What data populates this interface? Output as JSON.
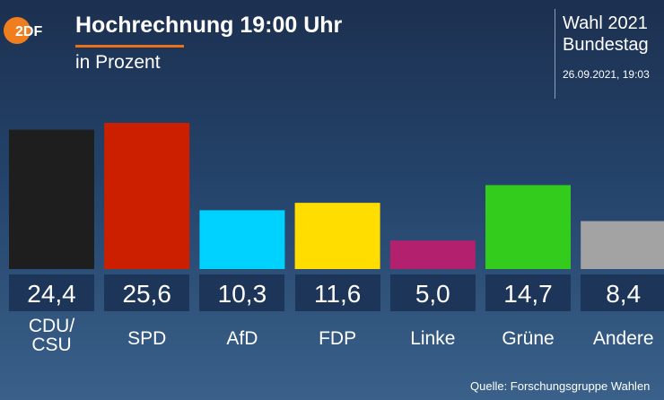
{
  "header": {
    "title": "Hochrechnung 19:00 Uhr",
    "subtitle": "in Prozent",
    "logo": "ZDF",
    "election": "Wahl 2021",
    "election_type": "Bundestag",
    "datetime": "26.09.2021, 19:03"
  },
  "footer": {
    "source": "Quelle: Forschungsgruppe Wahlen"
  },
  "chart_data": {
    "type": "bar",
    "title": "Hochrechnung 19:00 Uhr",
    "subtitle": "in Prozent",
    "categories": [
      "CDU/\nCSU",
      "SPD",
      "AfD",
      "FDP",
      "Linke",
      "Grüne",
      "Andere"
    ],
    "values": [
      24.4,
      25.6,
      10.3,
      11.6,
      5.0,
      14.7,
      8.4
    ],
    "value_labels": [
      "24,4",
      "25,6",
      "10,3",
      "11,6",
      "5,0",
      "14,7",
      "8,4"
    ],
    "colors": [
      "#1e1e1e",
      "#cc1f00",
      "#00d2ff",
      "#ffdd00",
      "#b3206e",
      "#34cc1c",
      "#a3a3a3"
    ],
    "ylim": [
      0,
      25.6
    ],
    "grid": false
  }
}
